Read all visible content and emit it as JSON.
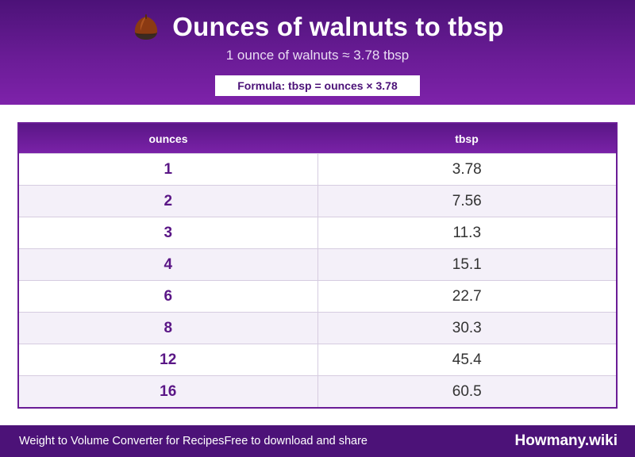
{
  "header": {
    "title": "Ounces of walnuts to tbsp",
    "icon": "chestnut-icon",
    "subtitle": "1 ounce of walnuts ≈ 3.78 tbsp",
    "formula": "Formula: tbsp = ounces × 3.78"
  },
  "table": {
    "headers": [
      "ounces",
      "tbsp"
    ],
    "rows": [
      {
        "oz": "1",
        "tbsp": "3.78"
      },
      {
        "oz": "2",
        "tbsp": "7.56"
      },
      {
        "oz": "3",
        "tbsp": "11.3"
      },
      {
        "oz": "4",
        "tbsp": "15.1"
      },
      {
        "oz": "6",
        "tbsp": "22.7"
      },
      {
        "oz": "8",
        "tbsp": "30.3"
      },
      {
        "oz": "12",
        "tbsp": "45.4"
      },
      {
        "oz": "16",
        "tbsp": "60.5"
      }
    ]
  },
  "footer": {
    "left_part1": "Weight to Volume Converter for Recipes",
    "left_part2": "Free to download and share",
    "brand": "Howmany.wiki"
  },
  "colors": {
    "primary": "#4c1278",
    "accent": "#7e22aa",
    "row_alt": "#f4f0f9"
  }
}
